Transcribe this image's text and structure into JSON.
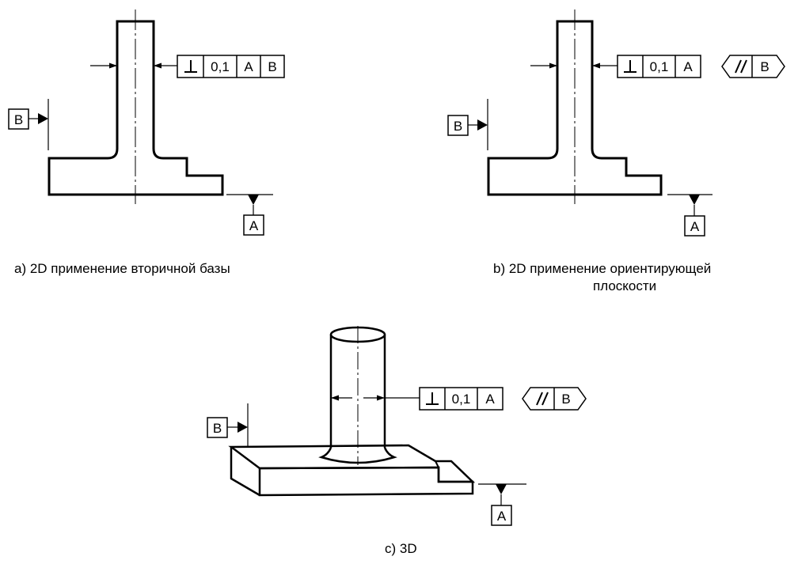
{
  "panel_a": {
    "caption": "a) 2D применение вторичной базы",
    "frame": {
      "symbol": "⊥",
      "tolerance": "0,1",
      "datum1": "A",
      "datum2": "B"
    },
    "datum_top": "B",
    "datum_bottom": "A"
  },
  "panel_b": {
    "caption_line1": "b) 2D применение ориентирующей",
    "caption_line2": "плоскости",
    "frame": {
      "symbol": "⊥",
      "tolerance": "0,1",
      "datum1": "A"
    },
    "orientation_frame": {
      "symbol": "//",
      "datum": "B"
    },
    "datum_top": "B",
    "datum_bottom": "A"
  },
  "panel_c": {
    "caption": "c) 3D",
    "frame": {
      "symbol": "⊥",
      "tolerance": "0,1",
      "datum1": "A"
    },
    "orientation_frame": {
      "symbol": "//",
      "datum": "B"
    },
    "datum_top": "B",
    "datum_bottom": "A"
  }
}
